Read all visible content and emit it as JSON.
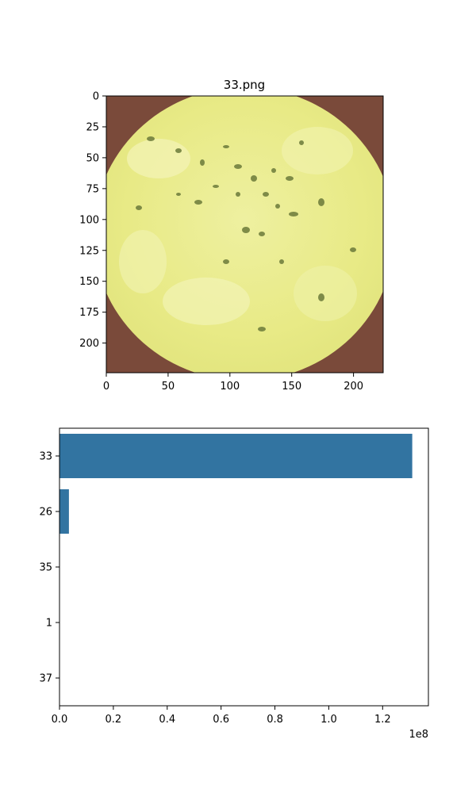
{
  "chart_data": [
    {
      "type": "image",
      "title": "33.png",
      "xlim": [
        0,
        224
      ],
      "ylim": [
        224,
        0
      ],
      "xticks": [
        0,
        50,
        100,
        150,
        200
      ],
      "yticks": [
        0,
        25,
        50,
        75,
        100,
        125,
        150,
        175,
        200
      ],
      "xtick_labels": [
        "0",
        "50",
        "100",
        "150",
        "200"
      ],
      "ytick_labels": [
        "0",
        "25",
        "50",
        "75",
        "100",
        "125",
        "150",
        "175",
        "200"
      ]
    },
    {
      "type": "bar",
      "orientation": "horizontal",
      "categories": [
        "33",
        "26",
        "35",
        "1",
        "37"
      ],
      "values": [
        131000000,
        3500000,
        0,
        0,
        0
      ],
      "xlim": [
        0,
        137000000
      ],
      "xticks": [
        0,
        20000000,
        40000000,
        60000000,
        80000000,
        100000000,
        120000000
      ],
      "xtick_labels": [
        "0.0",
        "0.2",
        "0.4",
        "0.6",
        "0.8",
        "1.0",
        "1.2"
      ],
      "offset_label": "1e8",
      "bar_color": "#3274a1"
    }
  ]
}
